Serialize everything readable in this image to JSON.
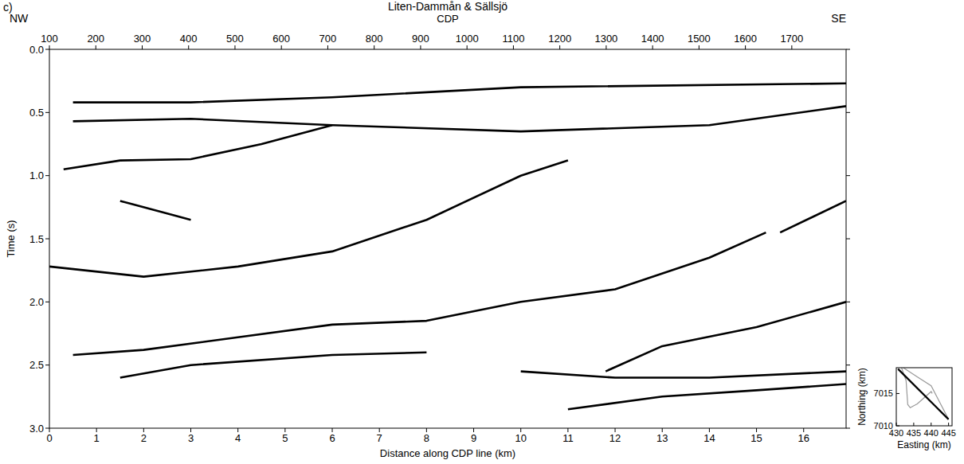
{
  "chart_data": [
    {
      "type": "seismic",
      "panel_label": "c)",
      "title": "Liten-Dammån & Sällsjö",
      "left_label": "NW",
      "right_label": "SE",
      "x2label": "CDP",
      "xlabel": "Distance along CDP line (km)",
      "ylabel": "Time (s)",
      "xlim": [
        0,
        16.9
      ],
      "xticks": [
        0,
        1,
        2,
        3,
        4,
        5,
        6,
        7,
        8,
        9,
        10,
        11,
        12,
        13,
        14,
        15,
        16
      ],
      "x2lim": [
        100,
        1817
      ],
      "x2ticks": [
        100,
        200,
        300,
        400,
        500,
        600,
        700,
        800,
        900,
        1000,
        1100,
        1200,
        1300,
        1400,
        1500,
        1600,
        1700
      ],
      "ylim": [
        3,
        0
      ],
      "yticks": [
        {
          "value": 0,
          "label": "0.0"
        },
        0.5,
        {
          "value": 1,
          "label": "1.0"
        },
        1.5,
        {
          "value": 2,
          "label": "2.0"
        },
        2.5,
        {
          "value": 3,
          "label": "3.0"
        }
      ],
      "color": "#000000",
      "series": [
        {
          "x": [
            0.5,
            3,
            6,
            10,
            16.9
          ],
          "values": [
            0.42,
            0.42,
            0.38,
            0.3,
            0.27
          ]
        },
        {
          "x": [
            0.5,
            3,
            6,
            10,
            14,
            16.9
          ],
          "values": [
            0.57,
            0.55,
            0.6,
            0.65,
            0.6,
            0.45
          ]
        },
        {
          "x": [
            0.3,
            1.5,
            3,
            4.5,
            6
          ],
          "values": [
            0.95,
            0.88,
            0.87,
            0.75,
            0.6
          ]
        },
        {
          "x": [
            1.5,
            2.5,
            3
          ],
          "values": [
            1.2,
            1.3,
            1.35
          ]
        },
        {
          "x": [
            0,
            2,
            4,
            6,
            8,
            10,
            11
          ],
          "values": [
            1.72,
            1.8,
            1.72,
            1.6,
            1.35,
            1.0,
            0.88
          ]
        },
        {
          "x": [
            0.5,
            2,
            4,
            6,
            8,
            10,
            12,
            14,
            15.2
          ],
          "values": [
            2.42,
            2.38,
            2.28,
            2.18,
            2.15,
            2.0,
            1.9,
            1.65,
            1.45
          ]
        },
        {
          "x": [
            1.5,
            3,
            6,
            8
          ],
          "values": [
            2.6,
            2.5,
            2.42,
            2.4
          ]
        },
        {
          "x": [
            11.8,
            13,
            15,
            16.9
          ],
          "values": [
            2.55,
            2.35,
            2.2,
            2.0
          ]
        },
        {
          "x": [
            10,
            12,
            14,
            16.9
          ],
          "values": [
            2.55,
            2.6,
            2.6,
            2.55
          ]
        },
        {
          "x": [
            11,
            13,
            15,
            16.9
          ],
          "values": [
            2.85,
            2.75,
            2.7,
            2.65
          ]
        },
        {
          "x": [
            15.5,
            16.9
          ],
          "values": [
            1.45,
            1.2
          ]
        }
      ]
    },
    {
      "type": "line",
      "xlabel": "Easting (km)",
      "ylabel": "Northing (km)",
      "xlim": [
        430,
        446
      ],
      "xticks": [
        430,
        435,
        440,
        445
      ],
      "ylim": [
        7010,
        7019
      ],
      "yticks": [
        7010,
        7015
      ],
      "series": [
        {
          "color": "#999999",
          "x": [
            431.5,
            432.8,
            433.3,
            434,
            436,
            438.5,
            440,
            440.3
          ],
          "values": [
            7019,
            7017,
            7013.3,
            7012.8,
            7013.4,
            7014.6,
            7015.3,
            7015
          ]
        },
        {
          "color": "#999999",
          "x": [
            432,
            436,
            440,
            445
          ],
          "values": [
            7019,
            7017.6,
            7016.2,
            7011
          ]
        },
        {
          "color": "#000000",
          "x": [
            430.5,
            445
          ],
          "values": [
            7018.8,
            7011
          ]
        }
      ]
    }
  ]
}
